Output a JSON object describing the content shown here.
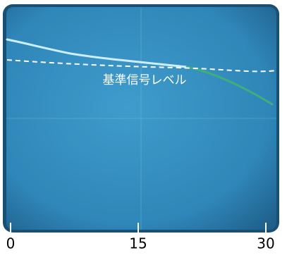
{
  "chart_data": {
    "type": "line",
    "annotation": "基準信号レベル",
    "xlim": [
      0,
      30
    ],
    "xticks": [
      0,
      15,
      30
    ]
  }
}
